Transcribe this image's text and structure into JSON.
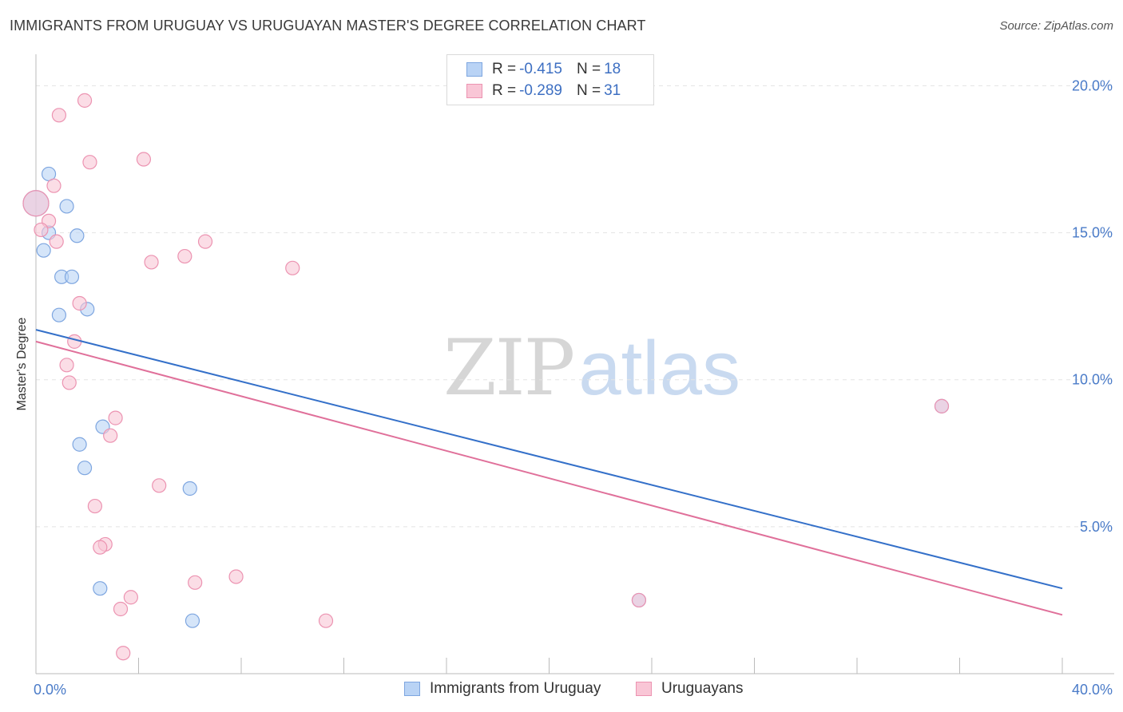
{
  "title": "IMMIGRANTS FROM URUGUAY VS URUGUAYAN MASTER'S DEGREE CORRELATION CHART",
  "source": "Source: ZipAtlas.com",
  "watermark": {
    "zip": "ZIP",
    "atlas": "atlas"
  },
  "colors": {
    "blue_fill": "#b9d3f5",
    "blue_stroke": "#7ea6e0",
    "blue_line": "#3470c9",
    "pink_fill": "#f9c6d6",
    "pink_stroke": "#ec93b1",
    "pink_line": "#e0709a",
    "tick_text": "#4a7bc8",
    "grid": "#e4e4e4"
  },
  "legend": {
    "rows": [
      {
        "r_label": "R = ",
        "r_value": "-0.415",
        "n_label": "N = ",
        "n_value": "18",
        "series": "blue"
      },
      {
        "r_label": "R = ",
        "r_value": "-0.289",
        "n_label": "N = ",
        "n_value": "31",
        "series": "pink"
      }
    ]
  },
  "bottom_legend": [
    {
      "label": "Immigrants from Uruguay",
      "series": "blue"
    },
    {
      "label": "Uruguayans",
      "series": "pink"
    }
  ],
  "chart_data": {
    "type": "scatter",
    "title": "IMMIGRANTS FROM URUGUAY VS URUGUAYAN MASTER'S DEGREE CORRELATION CHART",
    "xlabel": "",
    "ylabel": "Master's Degree",
    "xlim": [
      0,
      40
    ],
    "ylim": [
      0,
      20.8
    ],
    "x_tick_labels": [
      {
        "value": 0,
        "label": "0.0%"
      },
      {
        "value": 40,
        "label": "40.0%"
      }
    ],
    "x_minor_ticks": [
      4,
      8,
      12,
      16,
      20,
      24,
      28,
      32,
      36,
      40
    ],
    "y_tick_labels": [
      {
        "value": 5,
        "label": "5.0%"
      },
      {
        "value": 10,
        "label": "10.0%"
      },
      {
        "value": 15,
        "label": "15.0%"
      },
      {
        "value": 20,
        "label": "20.0%"
      }
    ],
    "grid": true,
    "series": [
      {
        "name": "Immigrants from Uruguay",
        "color": "blue",
        "points": [
          {
            "x": 0.0,
            "y": 16.0,
            "size": "large"
          },
          {
            "x": 0.5,
            "y": 17.0
          },
          {
            "x": 0.5,
            "y": 15.0
          },
          {
            "x": 1.2,
            "y": 15.9
          },
          {
            "x": 1.6,
            "y": 14.9
          },
          {
            "x": 0.3,
            "y": 14.4
          },
          {
            "x": 1.0,
            "y": 13.5
          },
          {
            "x": 1.4,
            "y": 13.5
          },
          {
            "x": 0.9,
            "y": 12.2
          },
          {
            "x": 2.0,
            "y": 12.4
          },
          {
            "x": 2.6,
            "y": 8.4
          },
          {
            "x": 1.7,
            "y": 7.8
          },
          {
            "x": 1.9,
            "y": 7.0
          },
          {
            "x": 6.0,
            "y": 6.3
          },
          {
            "x": 2.5,
            "y": 2.9
          },
          {
            "x": 6.1,
            "y": 1.8
          },
          {
            "x": 23.5,
            "y": 2.5
          },
          {
            "x": 35.3,
            "y": 9.1
          }
        ],
        "trend": {
          "x0": 0,
          "y0": 11.7,
          "x1": 40,
          "y1": 2.9
        }
      },
      {
        "name": "Uruguayans",
        "color": "pink",
        "points": [
          {
            "x": 0.0,
            "y": 16.0,
            "size": "large"
          },
          {
            "x": 1.9,
            "y": 19.5
          },
          {
            "x": 0.9,
            "y": 19.0
          },
          {
            "x": 2.1,
            "y": 17.4
          },
          {
            "x": 4.2,
            "y": 17.5
          },
          {
            "x": 0.7,
            "y": 16.6
          },
          {
            "x": 0.5,
            "y": 15.4
          },
          {
            "x": 0.2,
            "y": 15.1
          },
          {
            "x": 0.8,
            "y": 14.7
          },
          {
            "x": 6.6,
            "y": 14.7
          },
          {
            "x": 5.8,
            "y": 14.2
          },
          {
            "x": 4.5,
            "y": 14.0
          },
          {
            "x": 10.0,
            "y": 13.8
          },
          {
            "x": 1.7,
            "y": 12.6
          },
          {
            "x": 1.5,
            "y": 11.3
          },
          {
            "x": 1.2,
            "y": 10.5
          },
          {
            "x": 1.3,
            "y": 9.9
          },
          {
            "x": 3.1,
            "y": 8.7
          },
          {
            "x": 2.9,
            "y": 8.1
          },
          {
            "x": 4.8,
            "y": 6.4
          },
          {
            "x": 2.3,
            "y": 5.7
          },
          {
            "x": 2.7,
            "y": 4.4
          },
          {
            "x": 2.5,
            "y": 4.3
          },
          {
            "x": 7.8,
            "y": 3.3
          },
          {
            "x": 6.2,
            "y": 3.1
          },
          {
            "x": 3.7,
            "y": 2.6
          },
          {
            "x": 3.3,
            "y": 2.2
          },
          {
            "x": 11.3,
            "y": 1.8
          },
          {
            "x": 3.4,
            "y": 0.7
          },
          {
            "x": 23.5,
            "y": 2.5
          },
          {
            "x": 35.3,
            "y": 9.1
          }
        ],
        "trend": {
          "x0": 0,
          "y0": 11.3,
          "x1": 40,
          "y1": 2.0
        }
      }
    ]
  }
}
